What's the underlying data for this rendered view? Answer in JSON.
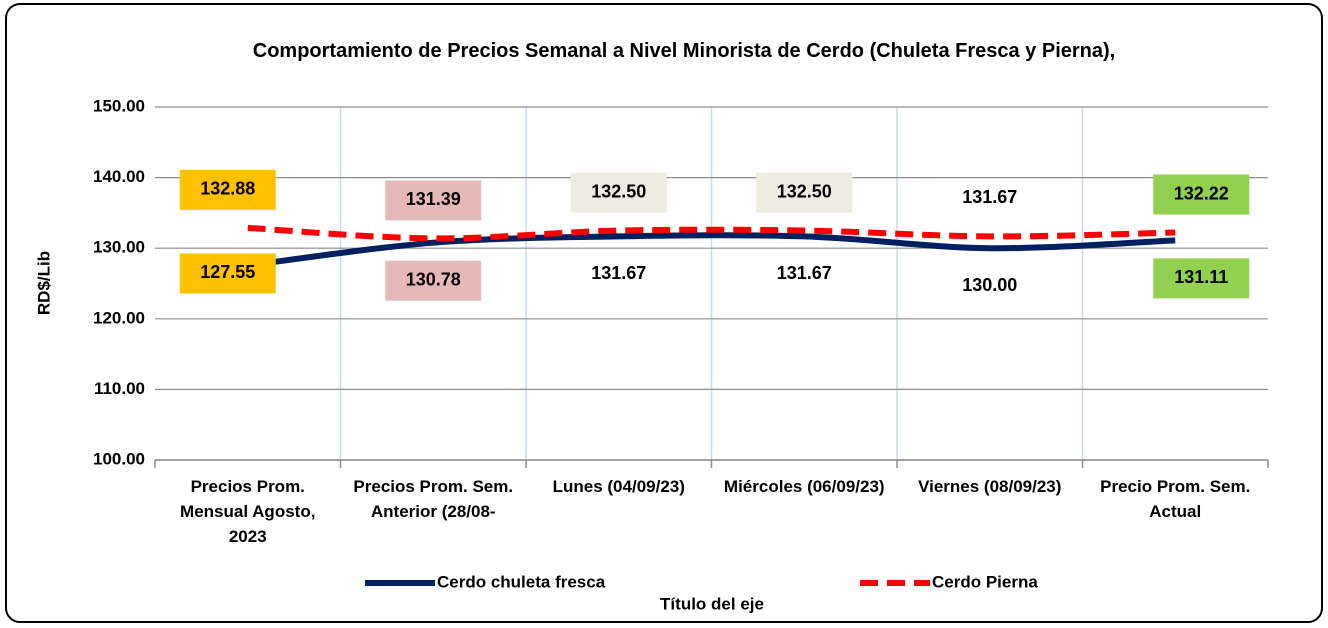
{
  "chart_data": {
    "type": "line",
    "title": "Comportamiento de Precios Semanal a Nivel Minorista de Cerdo (Chuleta Fresca y Pierna),",
    "y_label": "RD$/Lib",
    "x_label": "Título del eje",
    "categories": [
      "Precios Prom. Mensual Agosto, 2023",
      "Precios Prom. Sem. Anterior (28/08-",
      "Lunes  (04/09/23)",
      "Miércoles (06/09/23)",
      "Viernes (08/09/23)",
      "Precio Prom. Sem. Actual"
    ],
    "series": [
      {
        "name": "Cerdo chuleta fresca",
        "color": "#002060",
        "dash": false,
        "values": [
          127.55,
          130.78,
          131.67,
          131.67,
          130.0,
          131.11
        ],
        "value_labels": [
          "127.55",
          "130.78",
          "131.67",
          "131.67",
          "130.00",
          "131.11"
        ],
        "label_backgrounds": [
          "#ffc000",
          "#e6b9b8",
          null,
          null,
          null,
          "#92d050"
        ]
      },
      {
        "name": "Cerdo Pierna",
        "color": "#ff0000",
        "dash": true,
        "values": [
          132.88,
          131.39,
          132.5,
          132.5,
          131.67,
          132.22
        ],
        "value_labels": [
          "132.88",
          "131.39",
          "132.50",
          "132.50",
          "131.67",
          "132.22"
        ],
        "label_backgrounds": [
          "#ffc000",
          "#e6b9b8",
          "#eeece1",
          "#eeece1",
          null,
          "#92d050"
        ]
      }
    ],
    "ylim": [
      100,
      150
    ],
    "yticks": [
      {
        "value": 100,
        "label": "100.00"
      },
      {
        "value": 110,
        "label": "110.00"
      },
      {
        "value": 120,
        "label": "120.00"
      },
      {
        "value": 130,
        "label": "130.00"
      },
      {
        "value": 140,
        "label": "140.00"
      },
      {
        "value": 150,
        "label": "150.00"
      }
    ],
    "grid": true,
    "legend": "bottom"
  }
}
